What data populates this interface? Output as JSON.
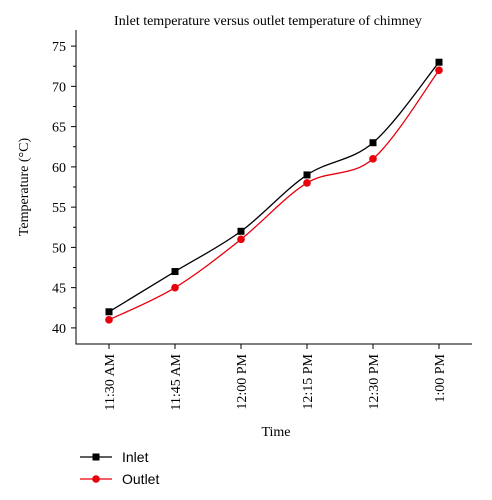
{
  "chart_data": {
    "type": "line",
    "title": "Inlet temperature versus outlet temperature of chimney",
    "xlabel": "Time",
    "ylabel": "Temperature (°C)",
    "categories": [
      "11:30 AM",
      "11:45 AM",
      "12:00 PM",
      "12:15 PM",
      "12:30 PM",
      "1:00 PM"
    ],
    "ylim": [
      38,
      77
    ],
    "yticks": [
      40,
      45,
      50,
      55,
      60,
      65,
      70,
      75
    ],
    "grid": false,
    "legend_position": "bottom-left",
    "series": [
      {
        "name": "Inlet",
        "values": [
          42,
          47,
          52,
          59,
          63,
          73
        ],
        "color": "#000000",
        "marker": "square"
      },
      {
        "name": "Outlet",
        "values": [
          41,
          45,
          51,
          58,
          61,
          72
        ],
        "color": "#e8000b",
        "marker": "circle"
      }
    ]
  }
}
